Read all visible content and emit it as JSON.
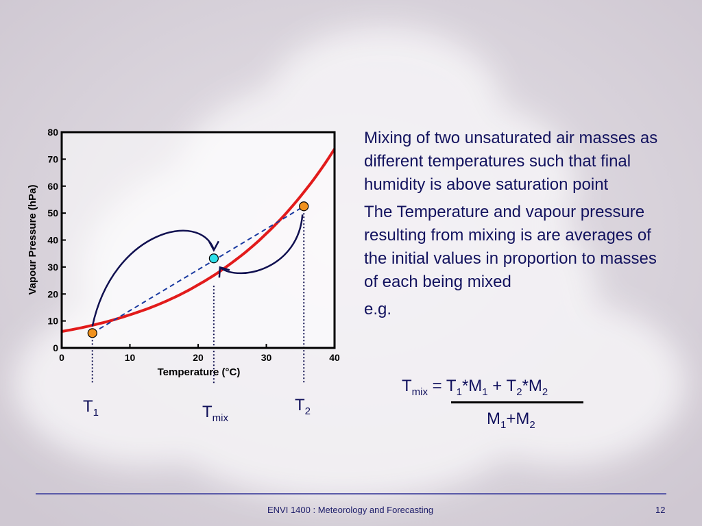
{
  "slide": {
    "paragraph_1": "Mixing of two unsaturated air masses as different temperatures such that final humidity is above saturation point",
    "paragraph_2": "The Temperature and vapour pressure resulting from mixing is are averages of the initial values in proportion to masses of each being mixed",
    "eg": "e.g.",
    "formula": {
      "lhs": "T",
      "lhs_sub": "mix",
      "equals": " = ",
      "t1": "T",
      "t1_sub": "1",
      "times_m1": "*M",
      "m1_sub": "1",
      "plus": " + ",
      "t2": "T",
      "t2_sub": "2",
      "times_m2": "*M",
      "m2_sub": "2",
      "den_m1": "M",
      "den_m1_sub": "1",
      "den_plus": "+M",
      "den_m2_sub": "2"
    },
    "footer": {
      "title": "ENVI 1400 : Meteorology and Forecasting",
      "page_number": "12"
    },
    "markers": {
      "t1": {
        "main": "T",
        "sub": "1"
      },
      "tmix": {
        "main": "T",
        "sub": "mix"
      },
      "t2": {
        "main": "T",
        "sub": "2"
      }
    }
  },
  "chart_data": {
    "type": "line",
    "xlabel": "Temperature (°C)",
    "ylabel": "Vapour Pressure (hPa)",
    "xlim": [
      0,
      40
    ],
    "ylim": [
      0,
      80
    ],
    "xticks": [
      0,
      10,
      20,
      30,
      40
    ],
    "yticks": [
      0,
      10,
      20,
      30,
      40,
      50,
      60,
      70,
      80
    ],
    "grid": false,
    "series": [
      {
        "kind": "saturation-curve",
        "color": "#e21b1b",
        "x": [
          0,
          5,
          10,
          15,
          20,
          25,
          30,
          35,
          40
        ],
        "y": [
          6.1,
          8.7,
          12.3,
          17.0,
          23.4,
          31.7,
          42.4,
          56.2,
          73.8
        ]
      },
      {
        "kind": "mixing-line",
        "color": "#1a3aa0",
        "x": [
          4.5,
          35.5
        ],
        "y": [
          5.5,
          52.5
        ]
      }
    ],
    "points": [
      {
        "id": "t1",
        "x": 4.5,
        "y": 5.5,
        "color": "#f0921e"
      },
      {
        "id": "tmix",
        "x": 22.3,
        "y": 33.2,
        "color": "#2ee0ea"
      },
      {
        "id": "t2",
        "x": 35.5,
        "y": 52.5,
        "color": "#f0921e"
      }
    ]
  }
}
